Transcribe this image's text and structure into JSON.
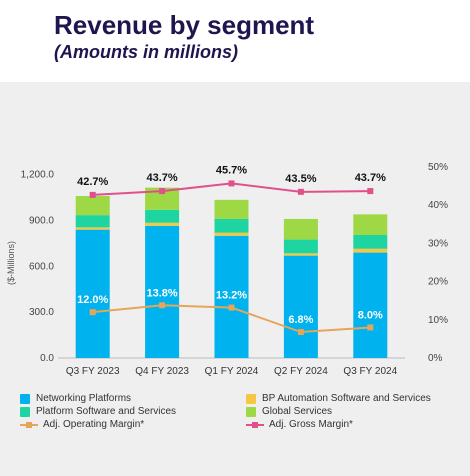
{
  "header": {
    "title": "Revenue by segment",
    "subtitle": "(Amounts in millions)"
  },
  "colors": {
    "networking": "#00b2ee",
    "bp_automation": "#f5c842",
    "platform_software": "#1ed4a0",
    "global_services": "#9fd845",
    "op_margin": "#e5a55a",
    "gross_margin": "#e0508a",
    "panel_bg": "#efeff0",
    "title": "#1f1650"
  },
  "chart_data": {
    "type": "bar",
    "stacked": true,
    "categories": [
      "Q3 FY 2023",
      "Q4 FY 2023",
      "Q1 FY 2024",
      "Q2 FY 2024",
      "Q3 FY 2024"
    ],
    "series": [
      {
        "name": "Networking Platforms",
        "values": [
          840,
          865,
          800,
          670,
          690
        ]
      },
      {
        "name": "BP Automation Software and Services",
        "values": [
          15,
          20,
          20,
          15,
          25
        ]
      },
      {
        "name": "Platform Software and Services",
        "values": [
          80,
          85,
          90,
          90,
          90
        ]
      },
      {
        "name": "Global Services",
        "values": [
          125,
          145,
          125,
          135,
          135
        ]
      }
    ],
    "line_series": [
      {
        "name": "Adj. Operating Margin*",
        "values": [
          12.0,
          13.8,
          13.2,
          6.8,
          8.0
        ],
        "labels": [
          "12.0%",
          "13.8%",
          "13.2%",
          "6.8%",
          "8.0%"
        ]
      },
      {
        "name": "Adj. Gross Margin*",
        "values": [
          42.7,
          43.7,
          45.7,
          43.5,
          43.7
        ],
        "labels": [
          "42.7%",
          "43.7%",
          "45.7%",
          "43.5%",
          "43.7%"
        ]
      }
    ],
    "ylabel": "($-Millions)",
    "ylim": [
      0,
      1250
    ],
    "yticks": [
      "0.0",
      "300.0",
      "600.0",
      "900.0",
      "1,200.0"
    ],
    "ytick_values": [
      0,
      300,
      600,
      900,
      1200
    ],
    "y2lim": [
      0,
      50
    ],
    "y2ticks": [
      "0%",
      "10%",
      "20%",
      "30%",
      "40%",
      "50%"
    ],
    "y2tick_values": [
      0,
      10,
      20,
      30,
      40,
      50
    ],
    "legend_position": "bottom"
  }
}
